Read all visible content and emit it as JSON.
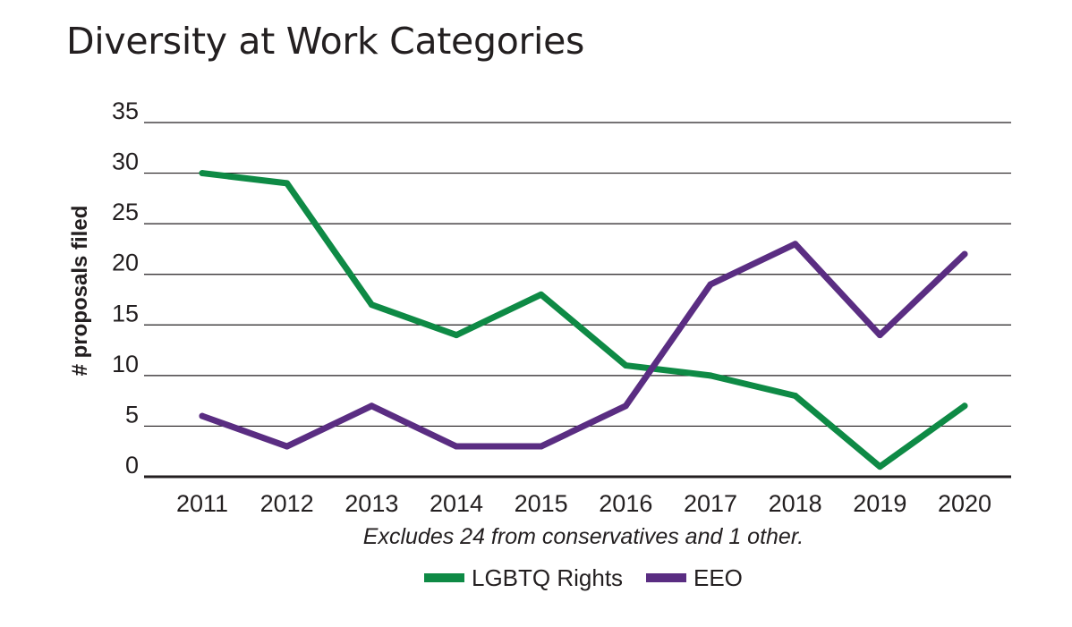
{
  "chart_data": {
    "type": "line",
    "title": "Diversity at Work Categories",
    "xlabel": "",
    "ylabel": "# proposals filed",
    "categories": [
      "2011",
      "2012",
      "2013",
      "2014",
      "2015",
      "2016",
      "2017",
      "2018",
      "2019",
      "2020"
    ],
    "ylim": [
      0,
      35
    ],
    "yticks": [
      0,
      5,
      10,
      15,
      20,
      25,
      30,
      35
    ],
    "grid": true,
    "legend_position": "bottom-center",
    "annotation": "Excludes 24 from conservatives and 1 other.",
    "series": [
      {
        "name": "LGBTQ Rights",
        "color": "#0e8a45",
        "values": [
          30,
          29,
          17,
          14,
          18,
          11,
          10,
          8,
          1,
          7
        ]
      },
      {
        "name": "EEO",
        "color": "#5a2d82",
        "values": [
          6,
          3,
          7,
          3,
          3,
          7,
          19,
          23,
          14,
          22
        ]
      }
    ]
  }
}
